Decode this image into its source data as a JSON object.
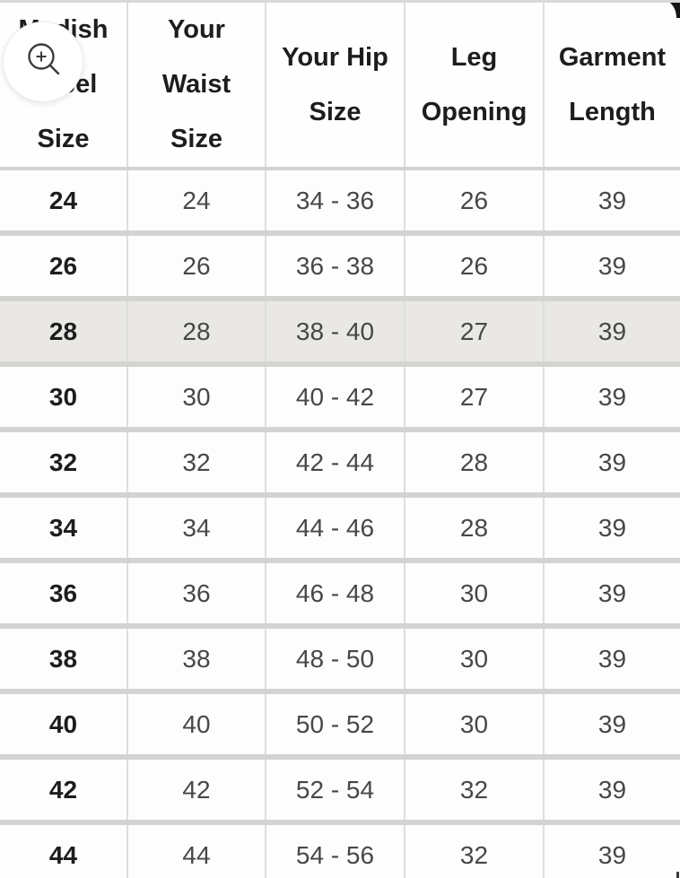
{
  "chart_data": {
    "type": "table",
    "columns": [
      "Madish Label Size",
      "Your Waist Size",
      "Your Hip Size",
      "Leg Opening",
      "Garment Length"
    ],
    "header_lines": [
      [
        "Madish",
        "Label",
        "Size"
      ],
      [
        "Your",
        "Waist",
        "Size"
      ],
      [
        "Your Hip",
        "Size"
      ],
      [
        "Leg",
        "Opening"
      ],
      [
        "Garment",
        "Length"
      ]
    ],
    "rows": [
      [
        "24",
        "24",
        "34 - 36",
        "26",
        "39"
      ],
      [
        "26",
        "26",
        "36 - 38",
        "26",
        "39"
      ],
      [
        "28",
        "28",
        "38 - 40",
        "27",
        "39"
      ],
      [
        "30",
        "30",
        "40 - 42",
        "27",
        "39"
      ],
      [
        "32",
        "32",
        "42 - 44",
        "28",
        "39"
      ],
      [
        "34",
        "34",
        "44 - 46",
        "28",
        "39"
      ],
      [
        "36",
        "36",
        "46 - 48",
        "30",
        "39"
      ],
      [
        "38",
        "38",
        "48 - 50",
        "30",
        "39"
      ],
      [
        "40",
        "40",
        "50 - 52",
        "30",
        "39"
      ],
      [
        "42",
        "42",
        "52 - 54",
        "32",
        "39"
      ],
      [
        "44",
        "44",
        "54 - 56",
        "32",
        "39"
      ]
    ],
    "highlighted_row_index": 2
  },
  "overlay": {
    "zoom_button_icon": "magnifier-plus-icon"
  },
  "colors": {
    "background": "#ffffff",
    "highlight_row_bg": "#e9e8e5",
    "row_separator": "#d3d3d1",
    "column_divider": "#dedede",
    "header_text": "#1d1d1d",
    "cell_text": "#474747"
  }
}
